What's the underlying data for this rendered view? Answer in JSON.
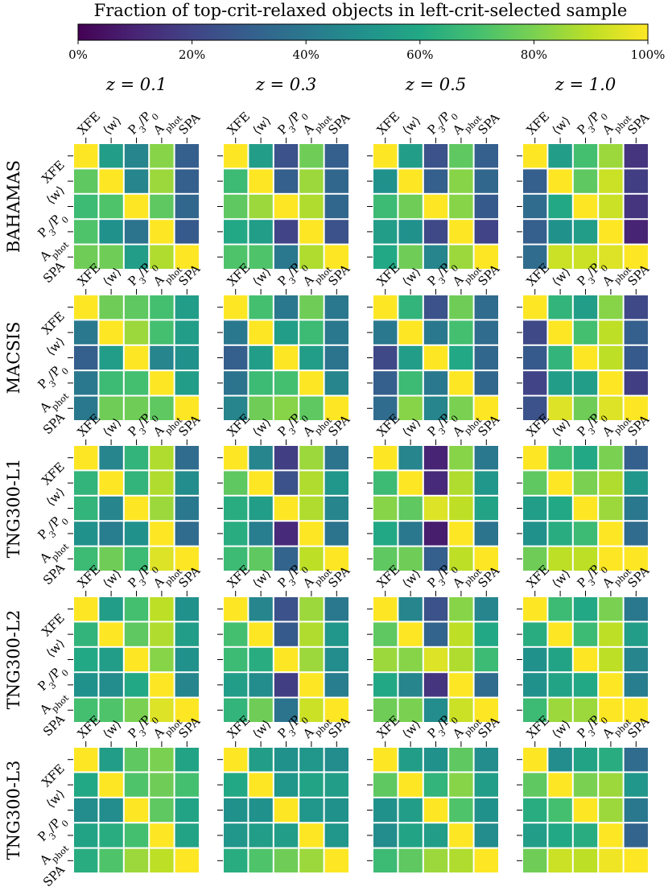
{
  "chart_data": {
    "type": "heatmap",
    "title": "Fraction of top-crit-relaxed objects in left-crit-selected sample",
    "colormap": "viridis",
    "color_range": [
      0,
      100
    ],
    "colorbar_ticks": [
      "0%",
      "20%",
      "40%",
      "60%",
      "80%",
      "100%"
    ],
    "criteria": [
      "XFE",
      "⟨w⟩",
      "P3/P0",
      "Aphot",
      "SPA"
    ],
    "redshifts": [
      "z = 0.1",
      "z = 0.3",
      "z = 0.5",
      "z = 1.0"
    ],
    "simulations": [
      "BAHAMAS",
      "MACSIS",
      "TNG300-L1",
      "TNG300-L2",
      "TNG300-L3"
    ],
    "values": [
      [
        [
          [
            100,
            55,
            45,
            82,
            30
          ],
          [
            75,
            100,
            45,
            85,
            30
          ],
          [
            68,
            72,
            100,
            75,
            33
          ],
          [
            72,
            50,
            38,
            100,
            28
          ],
          [
            78,
            78,
            55,
            88,
            100
          ]
        ],
        [
          [
            100,
            55,
            25,
            78,
            30
          ],
          [
            68,
            100,
            30,
            85,
            33
          ],
          [
            75,
            85,
            100,
            88,
            33
          ],
          [
            60,
            55,
            20,
            100,
            25
          ],
          [
            72,
            72,
            40,
            88,
            100
          ]
        ],
        [
          [
            100,
            55,
            25,
            75,
            30
          ],
          [
            50,
            100,
            30,
            82,
            33
          ],
          [
            68,
            78,
            100,
            82,
            28
          ],
          [
            55,
            50,
            22,
            100,
            20
          ],
          [
            60,
            78,
            45,
            85,
            100
          ]
        ],
        [
          [
            100,
            55,
            70,
            85,
            15
          ],
          [
            30,
            100,
            75,
            92,
            18
          ],
          [
            35,
            60,
            100,
            92,
            15
          ],
          [
            30,
            50,
            55,
            100,
            10
          ],
          [
            35,
            92,
            92,
            95,
            100
          ]
        ]
      ],
      [
        [
          [
            100,
            78,
            75,
            70,
            55
          ],
          [
            40,
            100,
            85,
            70,
            55
          ],
          [
            30,
            55,
            100,
            45,
            50
          ],
          [
            40,
            68,
            70,
            100,
            55
          ],
          [
            40,
            78,
            78,
            75,
            100
          ]
        ],
        [
          [
            100,
            70,
            40,
            78,
            40
          ],
          [
            40,
            100,
            55,
            68,
            40
          ],
          [
            30,
            55,
            100,
            55,
            38
          ],
          [
            38,
            68,
            70,
            100,
            45
          ],
          [
            45,
            78,
            82,
            75,
            100
          ]
        ],
        [
          [
            100,
            65,
            25,
            78,
            35
          ],
          [
            40,
            100,
            40,
            70,
            35
          ],
          [
            22,
            55,
            100,
            60,
            33
          ],
          [
            30,
            68,
            40,
            100,
            33
          ],
          [
            35,
            82,
            45,
            80,
            100
          ]
        ],
        [
          [
            100,
            65,
            55,
            82,
            22
          ],
          [
            22,
            100,
            70,
            90,
            30
          ],
          [
            28,
            65,
            100,
            90,
            28
          ],
          [
            20,
            55,
            55,
            100,
            18
          ],
          [
            25,
            95,
            78,
            95,
            100
          ]
        ]
      ],
      [
        [
          [
            100,
            45,
            65,
            88,
            35
          ],
          [
            65,
            100,
            65,
            88,
            48
          ],
          [
            65,
            45,
            100,
            85,
            40
          ],
          [
            50,
            42,
            50,
            100,
            35
          ],
          [
            68,
            78,
            68,
            95,
            100
          ]
        ],
        [
          [
            100,
            45,
            18,
            85,
            38
          ],
          [
            75,
            100,
            25,
            88,
            52
          ],
          [
            62,
            55,
            100,
            88,
            45
          ],
          [
            62,
            42,
            12,
            100,
            38
          ],
          [
            68,
            75,
            32,
            90,
            100
          ]
        ],
        [
          [
            100,
            45,
            10,
            82,
            40
          ],
          [
            68,
            100,
            12,
            88,
            52
          ],
          [
            82,
            75,
            95,
            90,
            58
          ],
          [
            60,
            40,
            8,
            100,
            38
          ],
          [
            75,
            78,
            30,
            90,
            100
          ]
        ],
        [
          [
            100,
            70,
            60,
            80,
            30
          ],
          [
            75,
            100,
            80,
            88,
            52
          ],
          [
            55,
            60,
            100,
            85,
            40
          ],
          [
            50,
            62,
            68,
            100,
            35
          ],
          [
            78,
            90,
            90,
            100,
            100
          ]
        ]
      ],
      [
        [
          [
            100,
            55,
            70,
            90,
            50
          ],
          [
            65,
            100,
            75,
            88,
            55
          ],
          [
            60,
            55,
            100,
            82,
            50
          ],
          [
            50,
            48,
            60,
            100,
            45
          ],
          [
            70,
            72,
            80,
            95,
            100
          ]
        ],
        [
          [
            100,
            45,
            25,
            85,
            40
          ],
          [
            70,
            100,
            28,
            88,
            52
          ],
          [
            68,
            62,
            100,
            85,
            48
          ],
          [
            55,
            48,
            18,
            100,
            42
          ],
          [
            65,
            78,
            38,
            92,
            100
          ]
        ],
        [
          [
            100,
            45,
            25,
            82,
            45
          ],
          [
            75,
            100,
            32,
            90,
            60
          ],
          [
            85,
            82,
            95,
            88,
            68
          ],
          [
            60,
            45,
            15,
            100,
            35
          ],
          [
            78,
            80,
            48,
            92,
            100
          ]
        ],
        [
          [
            100,
            68,
            60,
            80,
            40
          ],
          [
            62,
            100,
            68,
            90,
            55
          ],
          [
            50,
            58,
            100,
            90,
            45
          ],
          [
            50,
            58,
            60,
            100,
            42
          ],
          [
            68,
            85,
            85,
            100,
            100
          ]
        ]
      ],
      [
        [
          [
            100,
            55,
            75,
            80,
            58
          ],
          [
            60,
            100,
            72,
            78,
            70
          ],
          [
            48,
            48,
            100,
            75,
            58
          ],
          [
            58,
            62,
            70,
            100,
            58
          ],
          [
            62,
            72,
            85,
            90,
            100
          ]
        ],
        [
          [
            100,
            55,
            50,
            52,
            48
          ],
          [
            60,
            100,
            52,
            58,
            55
          ],
          [
            50,
            50,
            100,
            52,
            50
          ],
          [
            52,
            55,
            55,
            100,
            52
          ],
          [
            62,
            72,
            78,
            85,
            100
          ]
        ],
        [
          [
            100,
            55,
            50,
            75,
            48
          ],
          [
            75,
            100,
            65,
            82,
            55
          ],
          [
            50,
            55,
            100,
            72,
            50
          ],
          [
            48,
            58,
            55,
            100,
            48
          ],
          [
            68,
            75,
            85,
            88,
            100
          ]
        ],
        [
          [
            100,
            48,
            58,
            62,
            35
          ],
          [
            75,
            100,
            80,
            85,
            52
          ],
          [
            62,
            70,
            100,
            85,
            40
          ],
          [
            55,
            60,
            62,
            100,
            32
          ],
          [
            78,
            92,
            90,
            98,
            100
          ]
        ]
      ]
    ]
  }
}
